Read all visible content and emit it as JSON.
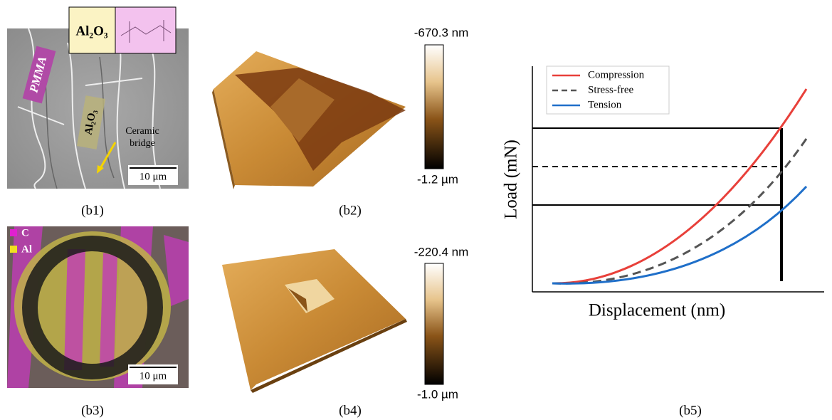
{
  "b1": {
    "caption": "(b1)",
    "inset_label": "Al₂O₃",
    "pmma_label": "PMMA",
    "alumina_label": "Al₂O₃",
    "bridge_label": [
      "Ceramic",
      "bridge"
    ],
    "scale_bar": "10 μm"
  },
  "b2": {
    "caption": "(b2)",
    "colorbar_top": "-670.3 nm",
    "colorbar_bottom": "-1.2 µm"
  },
  "b3": {
    "caption": "(b3)",
    "legend": [
      "C",
      "Al"
    ],
    "scale_bar": "10 μm"
  },
  "b4": {
    "caption": "(b4)",
    "colorbar_top": "-220.4 nm",
    "colorbar_bottom": "-1.0 µm"
  },
  "b5": {
    "caption": "(b5)",
    "x_label": "Displacement (nm)",
    "y_label": "Load (mN)",
    "legend": [
      "Compression",
      "Stress-free",
      "Tension"
    ]
  }
}
